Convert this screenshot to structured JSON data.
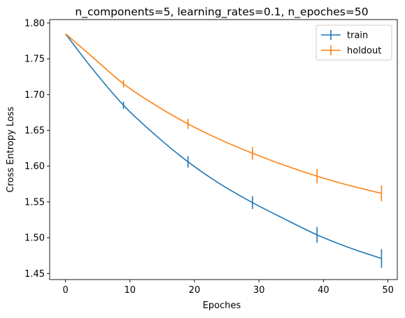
{
  "chart_data": {
    "type": "line",
    "title": "n_components=5, learning_rates=0.1, n_epoches=50",
    "xlabel": "Epoches",
    "ylabel": "Cross Entropy Loss",
    "xlim": [
      -2.45,
      51.45
    ],
    "ylim": [
      1.4415,
      1.8048
    ],
    "xticks": [
      0,
      10,
      20,
      30,
      40,
      50
    ],
    "yticks": [
      1.45,
      1.5,
      1.55,
      1.6,
      1.65,
      1.7,
      1.75,
      1.8
    ],
    "xtick_labels": [
      "0",
      "10",
      "20",
      "30",
      "40",
      "50"
    ],
    "ytick_labels": [
      "1.45",
      "1.50",
      "1.55",
      "1.60",
      "1.65",
      "1.70",
      "1.75",
      "1.80"
    ],
    "legend_position": "top-right",
    "grid": false,
    "series": [
      {
        "name": "train",
        "color": "#1f77b4",
        "x": [
          0,
          4,
          9,
          14,
          19,
          24,
          29,
          34,
          39,
          44,
          49
        ],
        "y": [
          1.785,
          1.738,
          1.685,
          1.643,
          1.606,
          1.575,
          1.549,
          1.526,
          1.504,
          1.486,
          1.471
        ],
        "errorbars": [
          {
            "x": 9,
            "y": 1.685,
            "err": 0.005
          },
          {
            "x": 19,
            "y": 1.606,
            "err": 0.008
          },
          {
            "x": 29,
            "y": 1.549,
            "err": 0.009
          },
          {
            "x": 39,
            "y": 1.504,
            "err": 0.011
          },
          {
            "x": 49,
            "y": 1.471,
            "err": 0.013
          }
        ]
      },
      {
        "name": "holdout",
        "color": "#ff7f0e",
        "x": [
          0,
          4,
          9,
          14,
          19,
          24,
          29,
          34,
          39,
          44,
          49
        ],
        "y": [
          1.785,
          1.754,
          1.715,
          1.685,
          1.659,
          1.637,
          1.618,
          1.601,
          1.586,
          1.573,
          1.562
        ],
        "errorbars": [
          {
            "x": 9,
            "y": 1.715,
            "err": 0.005
          },
          {
            "x": 19,
            "y": 1.659,
            "err": 0.007
          },
          {
            "x": 29,
            "y": 1.618,
            "err": 0.009
          },
          {
            "x": 39,
            "y": 1.586,
            "err": 0.01
          },
          {
            "x": 49,
            "y": 1.562,
            "err": 0.011
          }
        ]
      }
    ]
  }
}
